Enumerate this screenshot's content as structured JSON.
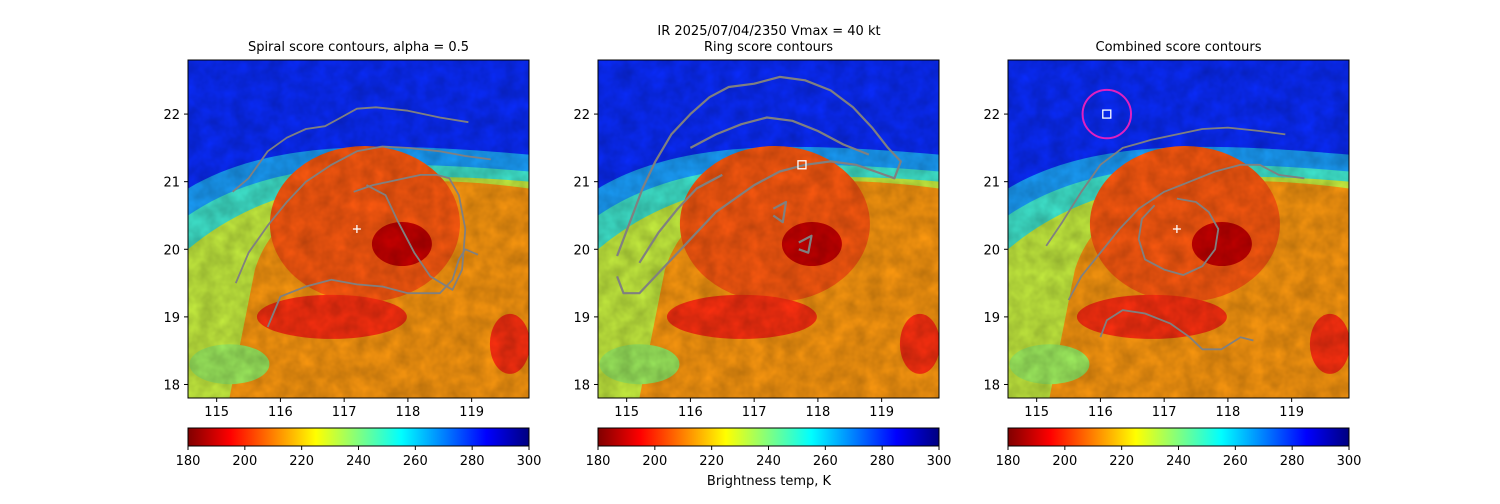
{
  "figure": {
    "suptitle_line1": "IR  2025/07/04/2350    Vmax = 40 kt",
    "colorbar_label": "Brightness temp, K"
  },
  "colormap": {
    "name": "jet",
    "stops": [
      "#800000",
      "#ff0000",
      "#ff8000",
      "#ffff00",
      "#80ff80",
      "#00ffff",
      "#0080ff",
      "#0000ff",
      "#000080"
    ]
  },
  "colors": {
    "contour": "#808080",
    "marker": "#ffffff",
    "ring": "#e020c0"
  },
  "chart_data": [
    {
      "type": "heatmap",
      "title": "Spiral score contours, alpha =  0.5",
      "xlim": [
        114.55,
        119.9
      ],
      "ylim": [
        17.8,
        22.8
      ],
      "xticks": [
        115,
        116,
        117,
        118,
        119
      ],
      "yticks": [
        18,
        19,
        20,
        21,
        22
      ],
      "colorbar": {
        "range": [
          180,
          300
        ],
        "ticks": [
          180,
          200,
          220,
          240,
          260,
          280,
          300
        ]
      },
      "center_marker": {
        "lon": 117.2,
        "lat": 20.3
      },
      "contours": [
        [
          [
            115.25,
            20.85
          ],
          [
            115.5,
            21.05
          ],
          [
            115.8,
            21.45
          ],
          [
            116.1,
            21.65
          ],
          [
            116.4,
            21.78
          ],
          [
            116.7,
            21.82
          ],
          [
            116.95,
            21.95
          ],
          [
            117.2,
            22.08
          ],
          [
            117.5,
            22.1
          ],
          [
            118.0,
            22.05
          ],
          [
            118.5,
            21.95
          ],
          [
            118.95,
            21.88
          ]
        ],
        [
          [
            115.3,
            19.5
          ],
          [
            115.5,
            19.95
          ],
          [
            115.8,
            20.35
          ],
          [
            116.1,
            20.7
          ],
          [
            116.4,
            21.0
          ],
          [
            116.8,
            21.25
          ],
          [
            117.2,
            21.45
          ],
          [
            117.6,
            21.52
          ],
          [
            118.0,
            21.5
          ],
          [
            118.5,
            21.45
          ],
          [
            118.9,
            21.38
          ],
          [
            119.3,
            21.33
          ]
        ],
        [
          [
            115.8,
            18.85
          ],
          [
            116.0,
            19.3
          ],
          [
            116.4,
            19.45
          ],
          [
            116.8,
            19.55
          ],
          [
            117.2,
            19.48
          ],
          [
            117.6,
            19.45
          ],
          [
            118.0,
            19.35
          ],
          [
            118.5,
            19.35
          ],
          [
            118.7,
            19.55
          ],
          [
            118.8,
            19.85
          ],
          [
            118.9,
            20.0
          ],
          [
            119.1,
            19.92
          ]
        ],
        [
          [
            117.15,
            20.85
          ],
          [
            117.45,
            20.95
          ],
          [
            117.7,
            21.0
          ],
          [
            117.95,
            21.05
          ],
          [
            118.2,
            21.1
          ],
          [
            118.45,
            21.1
          ],
          [
            118.65,
            21.05
          ],
          [
            118.8,
            20.8
          ],
          [
            118.9,
            20.3
          ],
          [
            118.85,
            19.7
          ],
          [
            118.7,
            19.4
          ],
          [
            118.35,
            19.6
          ],
          [
            118.1,
            19.95
          ],
          [
            117.85,
            20.4
          ],
          [
            117.65,
            20.8
          ],
          [
            117.35,
            20.95
          ]
        ]
      ]
    },
    {
      "type": "heatmap",
      "title": "Ring score contours",
      "xlim": [
        114.55,
        119.9
      ],
      "ylim": [
        17.8,
        22.8
      ],
      "xticks": [
        115,
        116,
        117,
        118,
        119
      ],
      "yticks": [
        18,
        19,
        20,
        21,
        22
      ],
      "colorbar": {
        "range": [
          180,
          300
        ],
        "ticks": [
          180,
          200,
          220,
          240,
          260,
          280,
          300
        ]
      },
      "square_marker": {
        "lon": 117.75,
        "lat": 21.25
      },
      "contours": [
        [
          [
            114.85,
            19.9
          ],
          [
            115.05,
            20.4
          ],
          [
            115.25,
            20.9
          ],
          [
            115.45,
            21.3
          ],
          [
            115.7,
            21.7
          ],
          [
            116.0,
            22.0
          ],
          [
            116.3,
            22.25
          ],
          [
            116.6,
            22.4
          ],
          [
            117.0,
            22.45
          ],
          [
            117.4,
            22.55
          ],
          [
            117.8,
            22.5
          ],
          [
            118.2,
            22.35
          ],
          [
            118.55,
            22.1
          ],
          [
            118.85,
            21.8
          ],
          [
            119.1,
            21.5
          ],
          [
            119.3,
            21.3
          ],
          [
            119.2,
            21.05
          ],
          [
            118.9,
            21.15
          ],
          [
            118.6,
            21.25
          ],
          [
            118.2,
            21.3
          ],
          [
            117.8,
            21.25
          ],
          [
            117.4,
            21.15
          ],
          [
            117.0,
            20.95
          ],
          [
            116.7,
            20.75
          ],
          [
            116.4,
            20.55
          ],
          [
            116.1,
            20.25
          ],
          [
            115.8,
            19.95
          ],
          [
            115.5,
            19.65
          ],
          [
            115.2,
            19.35
          ],
          [
            114.95,
            19.35
          ],
          [
            114.85,
            19.6
          ]
        ],
        [
          [
            116.0,
            21.5
          ],
          [
            116.4,
            21.7
          ],
          [
            116.8,
            21.85
          ],
          [
            117.2,
            21.95
          ],
          [
            117.6,
            21.9
          ],
          [
            118.0,
            21.75
          ],
          [
            118.4,
            21.55
          ],
          [
            118.8,
            21.4
          ]
        ],
        [
          [
            115.2,
            19.8
          ],
          [
            115.5,
            20.25
          ],
          [
            115.8,
            20.6
          ],
          [
            116.1,
            20.9
          ],
          [
            116.5,
            21.1
          ]
        ],
        [
          [
            117.3,
            20.6
          ],
          [
            117.5,
            20.7
          ],
          [
            117.45,
            20.4
          ],
          [
            117.3,
            20.5
          ]
        ],
        [
          [
            117.7,
            20.1
          ],
          [
            117.9,
            20.2
          ],
          [
            117.85,
            19.95
          ],
          [
            117.7,
            20.0
          ]
        ]
      ]
    },
    {
      "type": "heatmap",
      "title": "Combined score contours",
      "xlim": [
        114.55,
        119.9
      ],
      "ylim": [
        17.8,
        22.8
      ],
      "xticks": [
        115,
        116,
        117,
        118,
        119
      ],
      "yticks": [
        18,
        19,
        20,
        21,
        22
      ],
      "colorbar": {
        "range": [
          180,
          300
        ],
        "ticks": [
          180,
          200,
          220,
          240,
          260,
          280,
          300
        ]
      },
      "center_marker": {
        "lon": 117.2,
        "lat": 20.3
      },
      "square_marker": {
        "lon": 116.1,
        "lat": 22.0
      },
      "ring_marker": {
        "lon": 116.1,
        "lat": 22.0,
        "radius_deg": 0.38
      },
      "contours": [
        [
          [
            115.15,
            20.05
          ],
          [
            115.4,
            20.4
          ],
          [
            115.7,
            20.85
          ],
          [
            116.0,
            21.25
          ],
          [
            116.35,
            21.5
          ],
          [
            116.8,
            21.62
          ],
          [
            117.2,
            21.7
          ],
          [
            117.6,
            21.78
          ],
          [
            118.0,
            21.8
          ],
          [
            118.5,
            21.75
          ],
          [
            118.9,
            21.7
          ]
        ],
        [
          [
            115.5,
            19.25
          ],
          [
            115.7,
            19.6
          ],
          [
            116.0,
            19.95
          ],
          [
            116.3,
            20.3
          ],
          [
            116.6,
            20.6
          ],
          [
            117.0,
            20.85
          ],
          [
            117.4,
            21.0
          ],
          [
            117.8,
            21.15
          ],
          [
            118.2,
            21.25
          ],
          [
            118.5,
            21.25
          ],
          [
            118.8,
            21.1
          ],
          [
            119.2,
            21.05
          ]
        ],
        [
          [
            117.2,
            20.75
          ],
          [
            117.5,
            20.7
          ],
          [
            117.7,
            20.55
          ],
          [
            117.85,
            20.3
          ],
          [
            117.8,
            20.0
          ],
          [
            117.6,
            19.75
          ],
          [
            117.3,
            19.62
          ],
          [
            117.0,
            19.7
          ],
          [
            116.7,
            19.85
          ],
          [
            116.6,
            20.15
          ],
          [
            116.65,
            20.45
          ],
          [
            116.85,
            20.65
          ]
        ],
        [
          [
            116.0,
            18.7
          ],
          [
            116.1,
            18.95
          ],
          [
            116.35,
            19.1
          ],
          [
            116.7,
            19.05
          ],
          [
            117.1,
            18.9
          ],
          [
            117.4,
            18.7
          ],
          [
            117.6,
            18.52
          ],
          [
            117.9,
            18.52
          ],
          [
            118.2,
            18.7
          ],
          [
            118.4,
            18.65
          ]
        ]
      ]
    }
  ]
}
